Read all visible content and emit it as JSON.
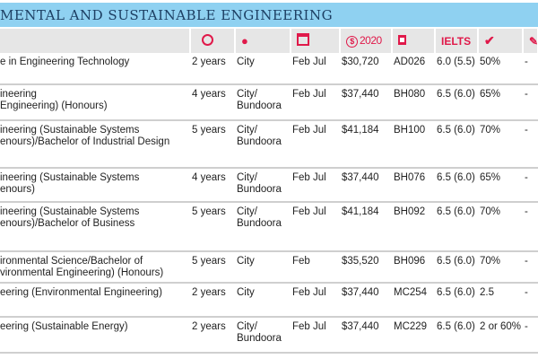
{
  "header": {
    "title": "MENTAL AND SUSTAINABLE ENGINEERING"
  },
  "columns": {
    "duration_icon": "clock-icon",
    "campus_icon": "location-pin-icon",
    "intake_icon": "calendar-icon",
    "fee_label": "2020",
    "fee_symbol": "$",
    "code_icon": "document-icon",
    "ielts_label": "IELTS",
    "entry_icon": "checkmark-icon",
    "extra_icon": "edit-icon",
    "accent": "#e0194a",
    "bar_color": "#8fd1f1"
  },
  "rows": [
    {
      "program": "e in Engineering Technology",
      "duration": "2 years",
      "campus": "City",
      "intake": "Feb Jul",
      "fee": "$30,720",
      "code": "AD026",
      "ielts": "6.0 (5.5)",
      "entry": "50%",
      "extra": "-"
    },
    {
      "program": "ineering\nEngineering) (Honours)",
      "duration": "4 years",
      "campus": "City/ Bundoora",
      "intake": "Feb Jul",
      "fee": "$37,440",
      "code": "BH080",
      "ielts": "6.5 (6.0)",
      "entry": "65%",
      "extra": "-"
    },
    {
      "program": "ineering (Sustainable Systems\nenours)/Bachelor of Industrial Design",
      "duration": "5 years",
      "campus": "City/ Bundoora",
      "intake": "Feb Jul",
      "fee": "$41,184",
      "code": "BH100",
      "ielts": "6.5 (6.0)",
      "entry": "70%",
      "extra": "-"
    },
    {
      "program": "ineering (Sustainable Systems\nenours)",
      "duration": "4 years",
      "campus": "City/ Bundoora",
      "intake": "Feb Jul",
      "fee": "$37,440",
      "code": "BH076",
      "ielts": "6.5 (6.0)",
      "entry": "65%",
      "extra": "-"
    },
    {
      "program": "ineering (Sustainable Systems\nenours)/Bachelor of Business",
      "duration": "5 years",
      "campus": "City/ Bundoora",
      "intake": "Feb Jul",
      "fee": "$41,184",
      "code": "BH092",
      "ielts": "6.5 (6.0)",
      "entry": "70%",
      "extra": "-"
    },
    {
      "program": "ironmental Science/Bachelor of\nvironmental Engineering) (Honours)",
      "duration": "5 years",
      "campus": "City",
      "intake": "Feb",
      "fee": "$35,520",
      "code": "BH096",
      "ielts": "6.5 (6.0)",
      "entry": "70%",
      "extra": "-"
    },
    {
      "program": "eering (Environmental Engineering)",
      "duration": "2 years",
      "campus": "City",
      "intake": "Feb Jul",
      "fee": "$37,440",
      "code": "MC254",
      "ielts": "6.5 (6.0)",
      "entry": "2.5",
      "extra": "-"
    },
    {
      "program": "eering (Sustainable Energy)",
      "duration": "2 years",
      "campus": "City/ Bundoora",
      "intake": "Feb Jul",
      "fee": "$37,440",
      "code": "MC229",
      "ielts": "6.5 (6.0)",
      "entry": "2 or 60%",
      "extra": "-"
    }
  ]
}
